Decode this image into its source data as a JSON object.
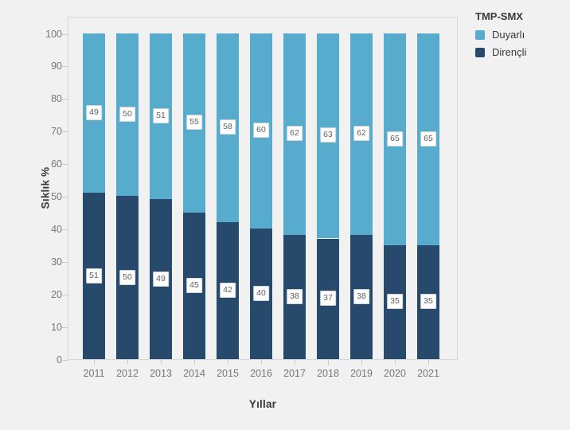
{
  "legend": {
    "title": "TMP-SMX",
    "items": [
      {
        "label": "Duyarlı",
        "color": "#57abcd"
      },
      {
        "label": "Dirençli",
        "color": "#27496b"
      }
    ]
  },
  "chart_data": {
    "type": "bar",
    "stacked": true,
    "title": "",
    "xlabel": "Yıllar",
    "ylabel": "Sıklık %",
    "categories": [
      "2011",
      "2012",
      "2013",
      "2014",
      "2015",
      "2016",
      "2017",
      "2018",
      "2019",
      "2020",
      "2021"
    ],
    "series": [
      {
        "name": "Dirençli",
        "color": "#27496b",
        "values": [
          51,
          50,
          49,
          45,
          42,
          40,
          38,
          37,
          38,
          35,
          35
        ]
      },
      {
        "name": "Duyarlı",
        "color": "#57abcd",
        "values": [
          49,
          50,
          51,
          55,
          58,
          60,
          62,
          63,
          62,
          65,
          65
        ]
      }
    ],
    "ylim": [
      0,
      100
    ],
    "yticks": [
      0,
      10,
      20,
      30,
      40,
      50,
      60,
      70,
      80,
      90,
      100
    ],
    "bar_value_labels": true,
    "grid": false,
    "legend_position": "top-right",
    "colors": {
      "background": "#f1f1f2",
      "plot_border": "#d6d7d9",
      "tick_text": "#767679",
      "axis_title_text": "#3a3a3c"
    }
  }
}
